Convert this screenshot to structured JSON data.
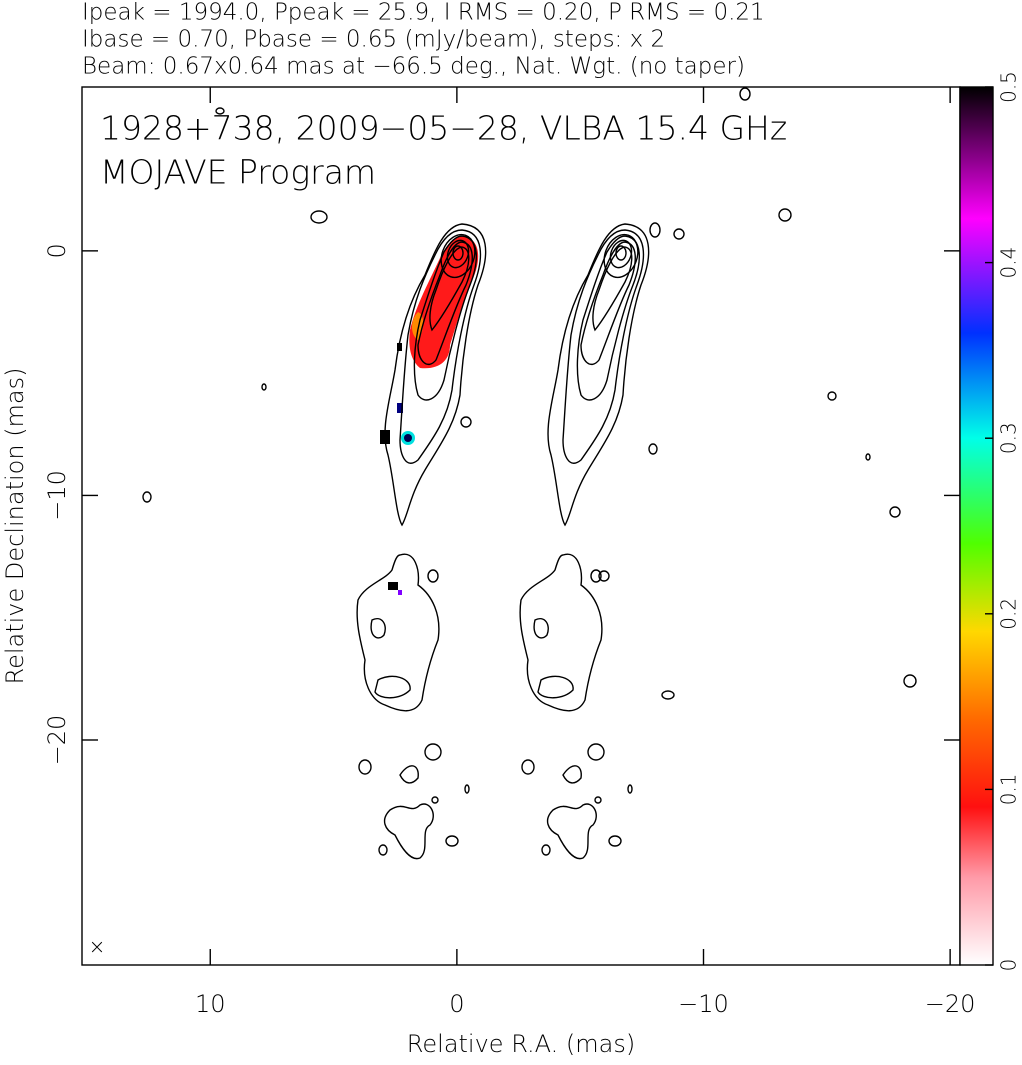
{
  "chart_data": {
    "type": "contour",
    "title_lines": [
      "Ipeak = 1994.0, Ppeak = 25.9, I RMS = 0.20, P RMS = 0.21",
      "Ibase = 0.70, Pbase = 0.65 (mJy/beam), steps: x 2",
      "Beam: 0.67x0.64 mas at −66.5 deg., Nat. Wgt. (no taper)"
    ],
    "annotations": [
      "1928+738, 2009−05−28, VLBA 15.4 GHz",
      "MOJAVE Program"
    ],
    "x_label": "Relative R.A. (mas)",
    "y_label": "Relative Declination (mas)",
    "xlim": [
      15.2,
      -20.4
    ],
    "xticks": [
      10,
      0,
      {
        "value": -10,
        "label": "−10"
      },
      {
        "value": -20,
        "label": "−20"
      }
    ],
    "ylim": [
      -29.2,
      6.7
    ],
    "yticks": [
      0,
      {
        "value": -10,
        "label": "−10"
      },
      {
        "value": -20,
        "label": "−20"
      }
    ],
    "colorbar": {
      "lim": [
        0,
        0.5
      ],
      "ticks": [
        0,
        0.1,
        0.2,
        0.3,
        0.4,
        0.5
      ]
    }
  }
}
